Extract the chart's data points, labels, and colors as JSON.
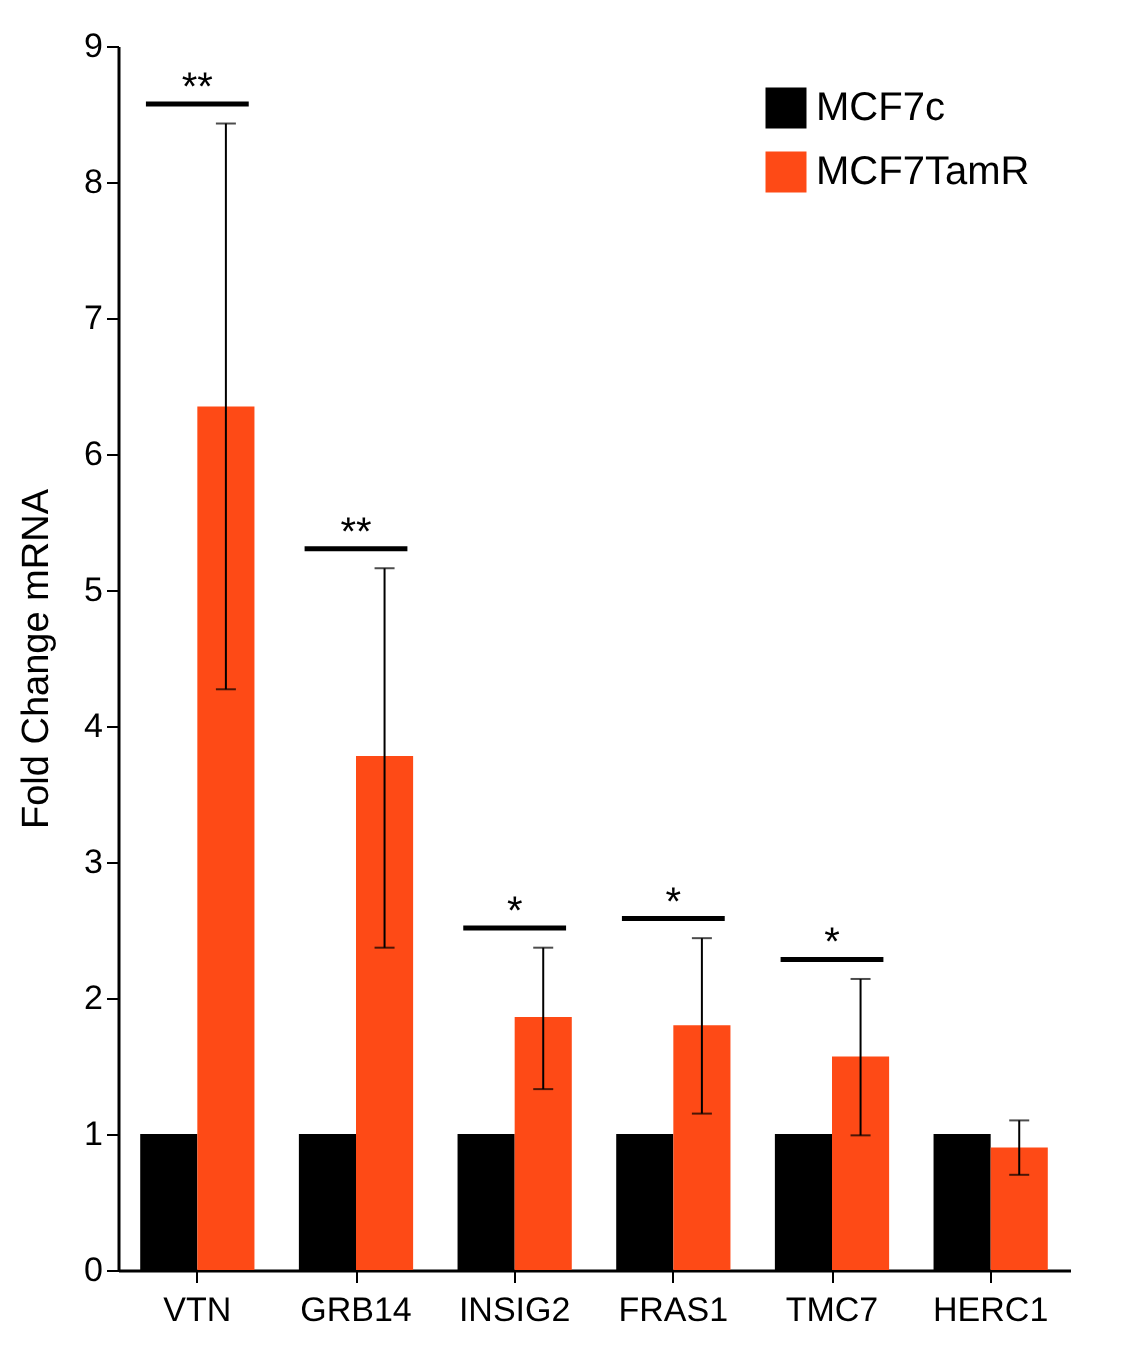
{
  "chart_data": {
    "type": "bar",
    "ylabel": "Fold Change mRNA",
    "categories": [
      "VTN",
      "GRB14",
      "INSIG2",
      "FRAS1",
      "TMC7",
      "HERC1"
    ],
    "series": [
      {
        "name": "MCF7c",
        "color": "#000000",
        "values": [
          1,
          1,
          1,
          1,
          1,
          1
        ]
      },
      {
        "name": "MCF7TamR",
        "color": "#fe4a16",
        "values": [
          6.35,
          3.78,
          1.86,
          1.8,
          1.57,
          0.9
        ],
        "errors": [
          [
            4.27,
            8.43
          ],
          [
            2.37,
            5.16
          ],
          [
            1.33,
            2.37
          ],
          [
            1.15,
            2.44
          ],
          [
            0.99,
            2.14
          ],
          [
            0.7,
            1.1
          ]
        ]
      }
    ],
    "ylim": [
      0,
      9
    ],
    "yticks": [
      0,
      1,
      2,
      3,
      4,
      5,
      6,
      7,
      8,
      9
    ],
    "grid": false,
    "legend": "top right",
    "annotations": [
      "**",
      "**",
      "*",
      "*",
      "*"
    ]
  }
}
